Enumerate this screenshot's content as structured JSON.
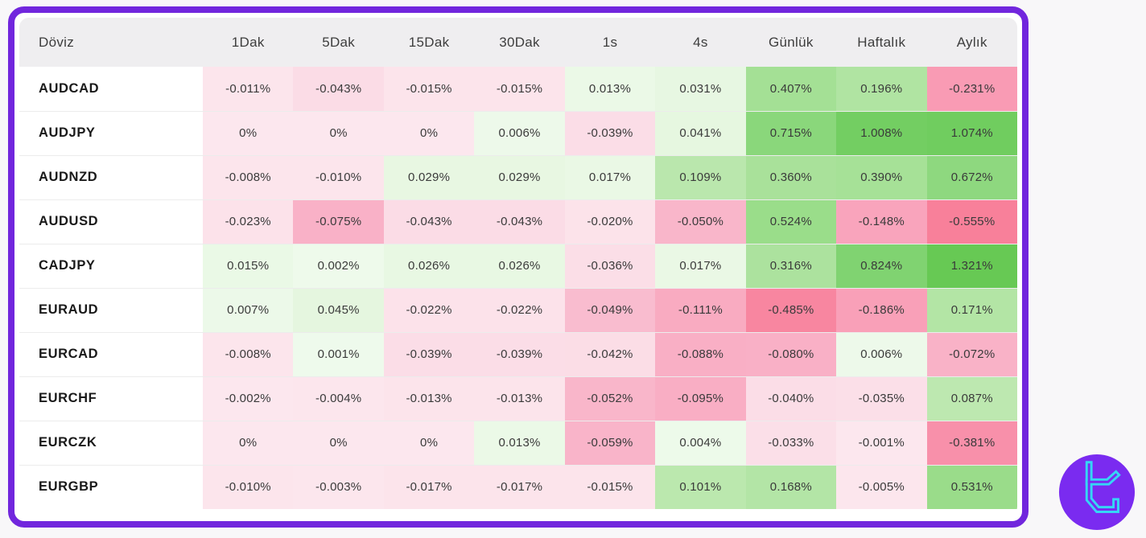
{
  "page": {
    "background": "#f8f7f9"
  },
  "card": {
    "border_color": "#7126dd",
    "background": "#ffffff",
    "header_background": "#efeef0",
    "row_divider_color": "#ececec"
  },
  "table": {
    "columns": [
      "Döviz",
      "1Dak",
      "5Dak",
      "15Dak",
      "30Dak",
      "1s",
      "4s",
      "Günlük",
      "Haftalık",
      "Aylık"
    ],
    "rows": [
      {
        "pair": "AUDCAD",
        "values": [
          "-0.011%",
          "-0.043%",
          "-0.015%",
          "-0.015%",
          "0.013%",
          "0.031%",
          "0.407%",
          "0.196%",
          "-0.231%"
        ]
      },
      {
        "pair": "AUDJPY",
        "values": [
          "0%",
          "0%",
          "0%",
          "0.006%",
          "-0.039%",
          "0.041%",
          "0.715%",
          "1.008%",
          "1.074%"
        ]
      },
      {
        "pair": "AUDNZD",
        "values": [
          "-0.008%",
          "-0.010%",
          "0.029%",
          "0.029%",
          "0.017%",
          "0.109%",
          "0.360%",
          "0.390%",
          "0.672%"
        ]
      },
      {
        "pair": "AUDUSD",
        "values": [
          "-0.023%",
          "-0.075%",
          "-0.043%",
          "-0.043%",
          "-0.020%",
          "-0.050%",
          "0.524%",
          "-0.148%",
          "-0.555%"
        ]
      },
      {
        "pair": "CADJPY",
        "values": [
          "0.015%",
          "0.002%",
          "0.026%",
          "0.026%",
          "-0.036%",
          "0.017%",
          "0.316%",
          "0.824%",
          "1.321%"
        ]
      },
      {
        "pair": "EURAUD",
        "values": [
          "0.007%",
          "0.045%",
          "-0.022%",
          "-0.022%",
          "-0.049%",
          "-0.111%",
          "-0.485%",
          "-0.186%",
          "0.171%"
        ]
      },
      {
        "pair": "EURCAD",
        "values": [
          "-0.008%",
          "0.001%",
          "-0.039%",
          "-0.039%",
          "-0.042%",
          "-0.088%",
          "-0.080%",
          "0.006%",
          "-0.072%"
        ]
      },
      {
        "pair": "EURCHF",
        "values": [
          "-0.002%",
          "-0.004%",
          "-0.013%",
          "-0.013%",
          "-0.052%",
          "-0.095%",
          "-0.040%",
          "-0.035%",
          "0.087%"
        ]
      },
      {
        "pair": "EURCZK",
        "values": [
          "0%",
          "0%",
          "0%",
          "0.013%",
          "-0.059%",
          "0.004%",
          "-0.033%",
          "-0.001%",
          "-0.381%"
        ]
      },
      {
        "pair": "EURGBP",
        "values": [
          "-0.010%",
          "-0.003%",
          "-0.017%",
          "-0.017%",
          "-0.015%",
          "0.101%",
          "0.168%",
          "-0.005%",
          "0.531%"
        ]
      }
    ]
  },
  "heat_scale": {
    "positive": [
      [
        0,
        "#eefaec"
      ],
      [
        0.02,
        "#e9f8e4"
      ],
      [
        0.05,
        "#e4f6de"
      ],
      [
        0.06,
        "#c4ecb9"
      ],
      [
        0.09,
        "#bce8af"
      ],
      [
        0.2,
        "#b0e4a2"
      ],
      [
        0.33,
        "#ace29d"
      ],
      [
        0.42,
        "#a3e094"
      ],
      [
        0.54,
        "#99dc89"
      ],
      [
        0.68,
        "#8dd87e"
      ],
      [
        0.72,
        "#89d77a"
      ],
      [
        0.83,
        "#80d370"
      ],
      [
        1.01,
        "#73ce62"
      ],
      [
        1.08,
        "#70cd5f"
      ],
      [
        1.33,
        "#67c954"
      ],
      [
        2,
        "#5cc449"
      ]
    ],
    "negative": [
      [
        0,
        "#fce7ee"
      ],
      [
        0.02,
        "#fce3ea"
      ],
      [
        0.044,
        "#fbdce6"
      ],
      [
        0.05,
        "#f9b6ca"
      ],
      [
        0.08,
        "#f9b0c6"
      ],
      [
        0.1,
        "#f9adc3"
      ],
      [
        0.15,
        "#f9a4bc"
      ],
      [
        0.19,
        "#f9a0b8"
      ],
      [
        0.24,
        "#f99ab3"
      ],
      [
        0.39,
        "#f88fa9"
      ],
      [
        0.49,
        "#f8859f"
      ],
      [
        0.56,
        "#f8809a"
      ],
      [
        1,
        "#f76f8d"
      ]
    ]
  },
  "logo": {
    "circle_color": "#7a2bf0",
    "glyph_color": "#35d6f5"
  }
}
